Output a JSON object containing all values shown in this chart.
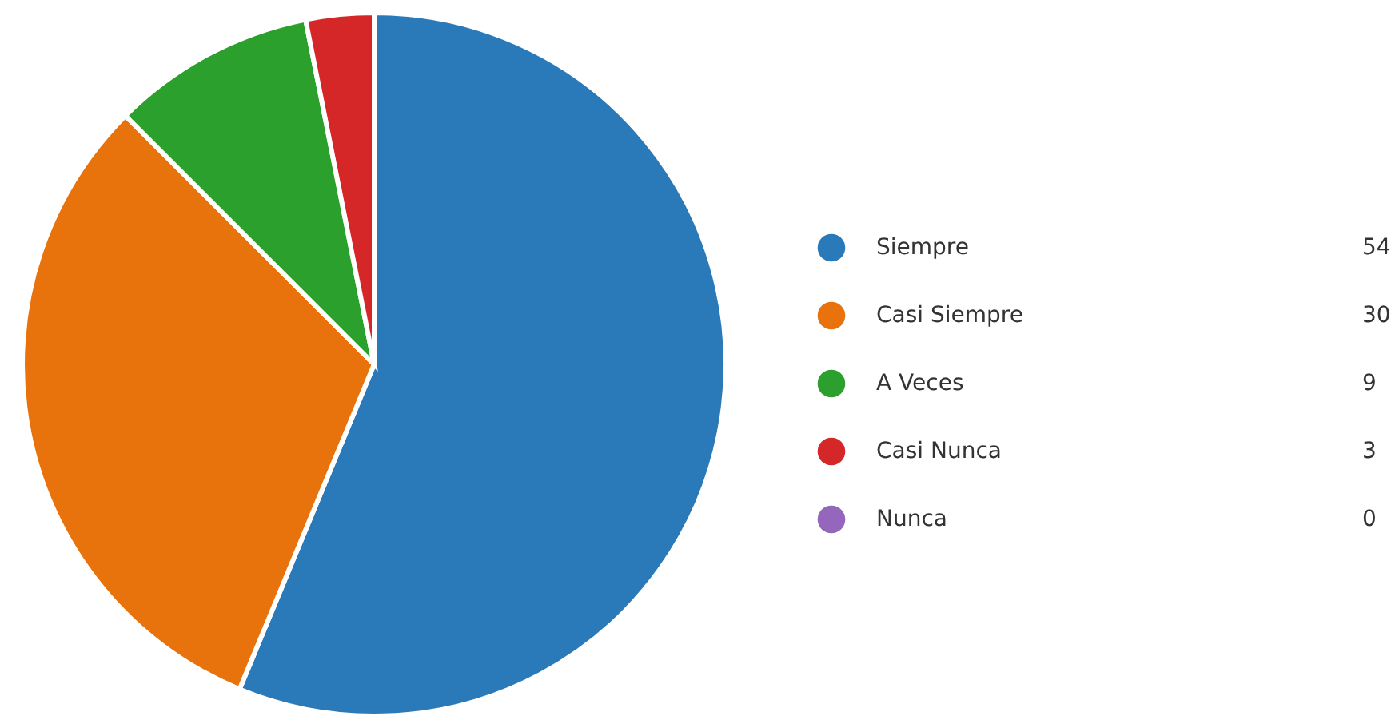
{
  "chart_data": {
    "type": "pie",
    "categories": [
      "Siempre",
      "Casi Siempre",
      "A Veces",
      "Casi Nunca",
      "Nunca"
    ],
    "values": [
      54,
      30,
      9,
      3,
      0
    ],
    "colors": [
      "#2a79b9",
      "#e8730d",
      "#2ca02c",
      "#d62728",
      "#9467bd"
    ],
    "value_labels": [
      "54",
      "30",
      "9",
      "3",
      "0"
    ],
    "legend": "right"
  }
}
